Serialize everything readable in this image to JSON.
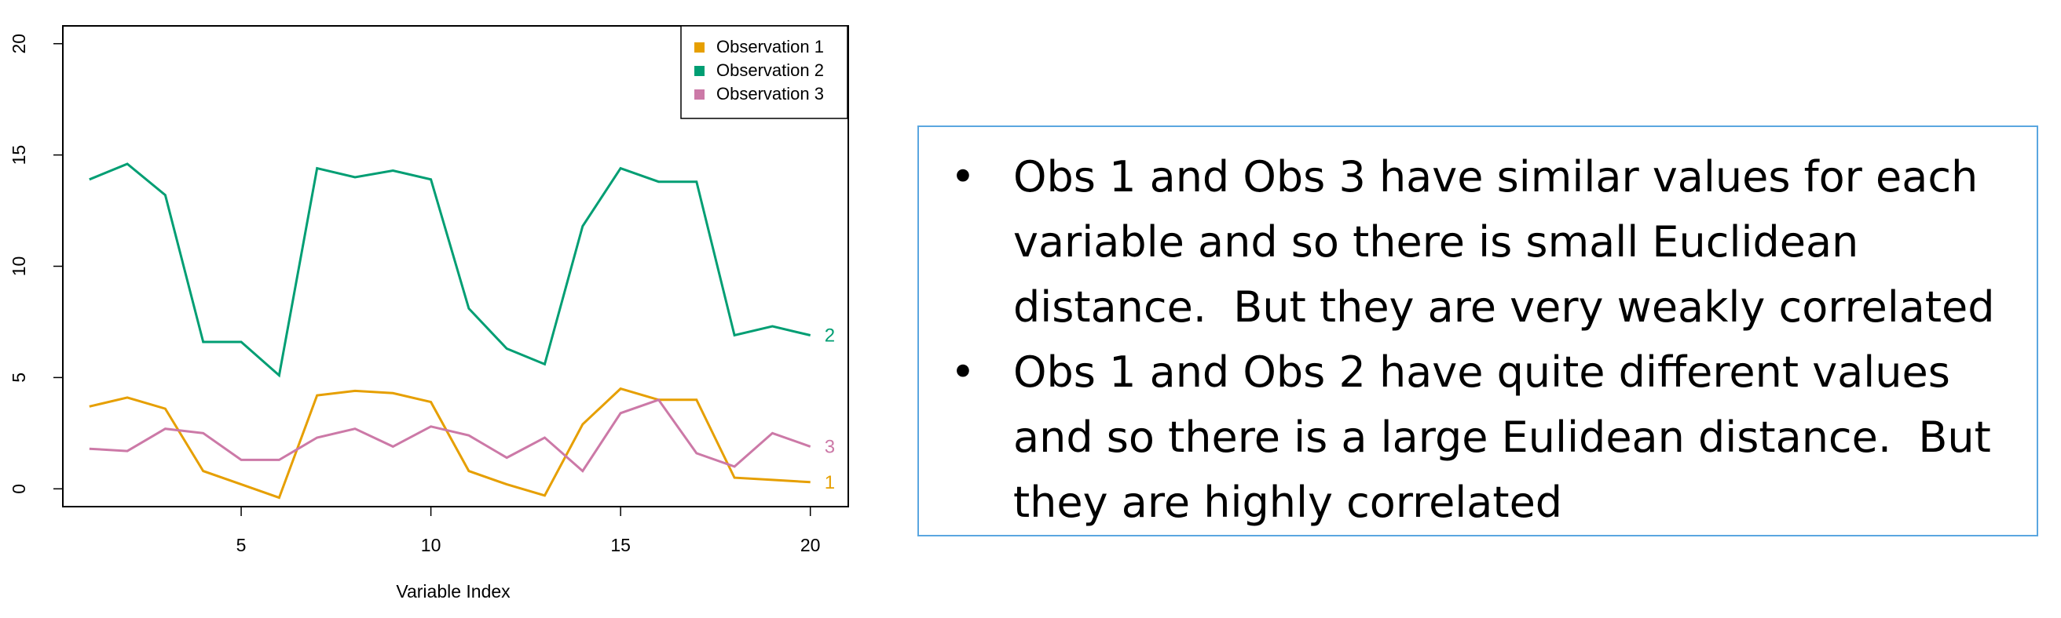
{
  "chart_data": {
    "type": "line",
    "title": "",
    "xlabel": "Variable Index",
    "ylabel": "",
    "xlim": [
      0.3,
      21.0
    ],
    "ylim": [
      -0.8,
      20.8
    ],
    "x_ticks": [
      5,
      10,
      15,
      20
    ],
    "y_ticks": [
      0,
      5,
      10,
      15,
      20
    ],
    "legend_position": "top-right",
    "grid": false,
    "x": [
      1,
      2,
      3,
      4,
      5,
      6,
      7,
      8,
      9,
      10,
      11,
      12,
      13,
      14,
      15,
      16,
      17,
      18,
      19,
      20
    ],
    "series": [
      {
        "name": "Observation 1",
        "end_label": "1",
        "color": "#E69F00",
        "values": [
          3.7,
          4.1,
          3.6,
          0.8,
          0.2,
          -0.4,
          4.2,
          4.4,
          4.3,
          3.9,
          0.8,
          0.2,
          -0.3,
          2.9,
          4.5,
          4.0,
          4.0,
          0.5,
          0.4,
          0.3
        ]
      },
      {
        "name": "Observation 2",
        "end_label": "2",
        "color": "#009E73",
        "values": [
          13.9,
          14.6,
          13.2,
          6.6,
          6.6,
          5.1,
          14.4,
          14.0,
          14.3,
          13.9,
          8.1,
          6.3,
          5.6,
          11.8,
          14.4,
          13.8,
          13.8,
          6.9,
          7.3,
          6.9
        ]
      },
      {
        "name": "Observation 3",
        "end_label": "3",
        "color": "#CC79A7",
        "values": [
          1.8,
          1.7,
          2.7,
          2.5,
          1.3,
          1.3,
          2.3,
          2.7,
          1.9,
          2.8,
          2.4,
          1.4,
          2.3,
          0.8,
          3.4,
          4.0,
          1.6,
          1.0,
          2.5,
          1.9
        ]
      }
    ]
  },
  "notes": {
    "bullets": [
      "Obs 1 and Obs 3 have similar values for each variable and so there is small Euclidean distance.  But they are very weakly correlated",
      "Obs 1 and Obs 2 have quite different values and so there is a large Eulidean distance.  But they are highly correlated"
    ],
    "bullet_symbol": "•"
  }
}
